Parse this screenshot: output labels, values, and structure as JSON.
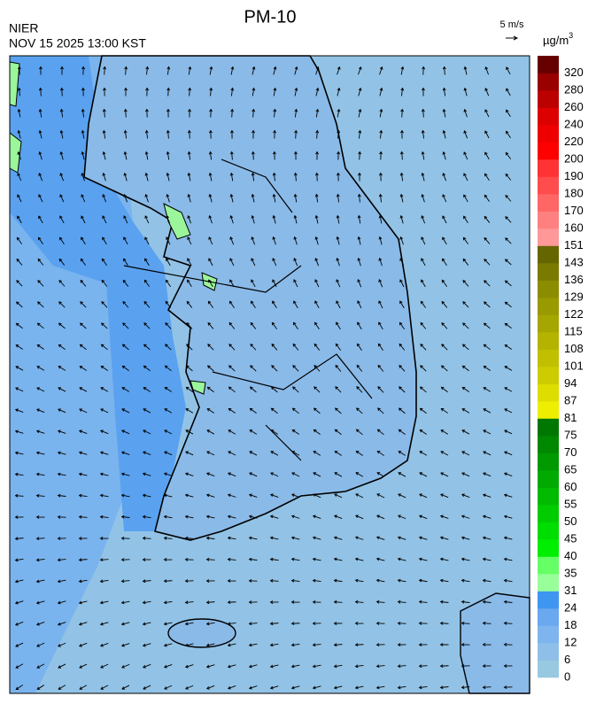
{
  "header": {
    "title": "PM-10",
    "source": "NIER",
    "datetime": "NOV 15 2025 13:00 KST",
    "wind_reference": "5 m/s"
  },
  "colorbar": {
    "unit": {
      "base": "µg/m",
      "sup": "3"
    },
    "levels": [
      0,
      6,
      12,
      18,
      24,
      31,
      35,
      40,
      45,
      50,
      55,
      60,
      65,
      70,
      75,
      81,
      87,
      94,
      101,
      108,
      115,
      122,
      129,
      136,
      143,
      151,
      160,
      170,
      180,
      190,
      200,
      220,
      240,
      260,
      280,
      320
    ],
    "colors": [
      "#99c9e0",
      "#8fbfe8",
      "#7fb5ee",
      "#6aa8f0",
      "#3f96f0",
      "#99ff99",
      "#66ff66",
      "#00ee00",
      "#00dd00",
      "#00cc00",
      "#00bb00",
      "#00aa00",
      "#009900",
      "#008800",
      "#007700",
      "#eeee00",
      "#dddd00",
      "#cccc00",
      "#c0c000",
      "#b3b300",
      "#a6a600",
      "#999900",
      "#8c8c00",
      "#7a7a00",
      "#666600",
      "#ff9999",
      "#ff8080",
      "#ff6666",
      "#ff4c4c",
      "#ff3333",
      "#ff0000",
      "#ee0000",
      "#dd0000",
      "#bb0000",
      "#990000",
      "#660000"
    ]
  }
}
